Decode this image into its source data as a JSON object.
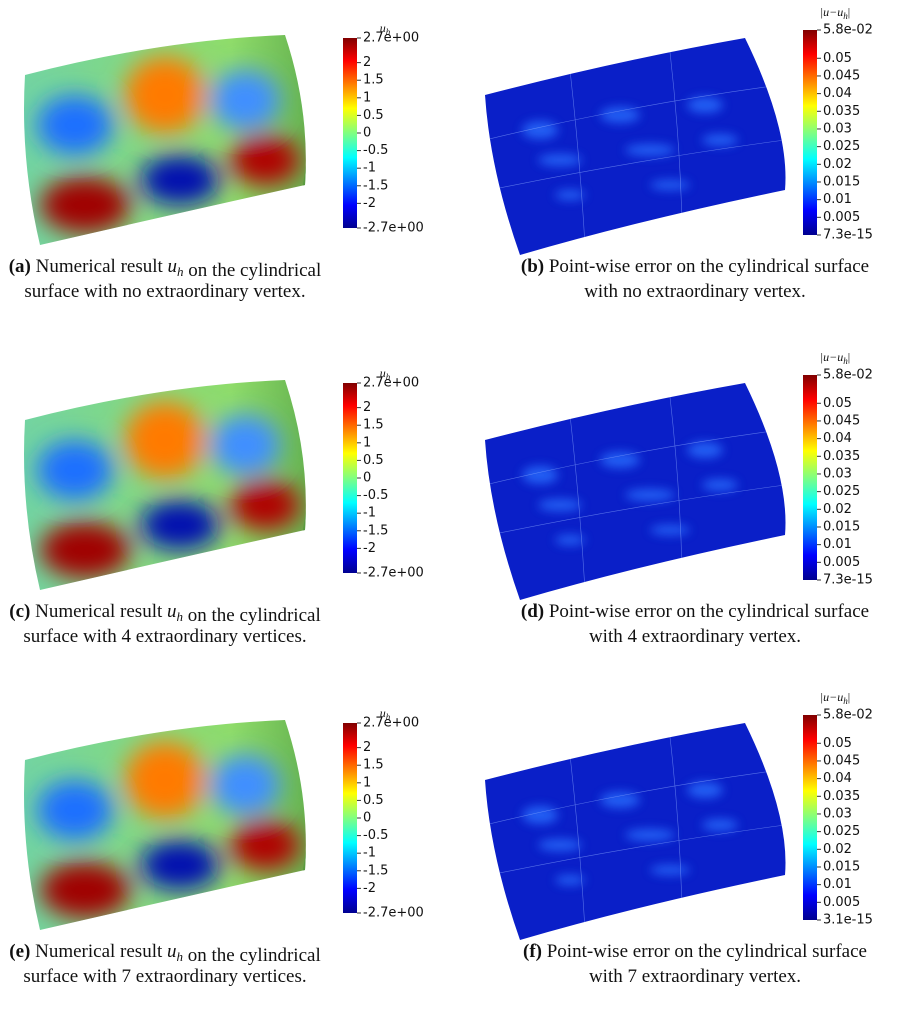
{
  "panels": [
    {
      "colorbar": {
        "title": {
          "main": "u",
          "sub": "h",
          "tail": ""
        },
        "ticks": [
          "2.7e+00",
          "2",
          "1.5",
          "1",
          "0.5",
          "0",
          "-0.5",
          "-1",
          "-1.5",
          "-2",
          "-2.7e+00"
        ]
      },
      "caption": {
        "label": "(a)",
        "line1": [
          {
            "text": " Numerical result "
          },
          {
            "math": "u",
            "sub": "h"
          },
          {
            "text": " on the cylindrical"
          }
        ],
        "line2": "surface with no extraordinary vertex."
      }
    },
    {
      "colorbar": {
        "title": {
          "main": "|u−u",
          "sub": "h",
          "tail": "|"
        },
        "ticks": [
          "5.8e-02",
          "0.05",
          "0.045",
          "0.04",
          "0.035",
          "0.03",
          "0.025",
          "0.02",
          "0.015",
          "0.01",
          "0.005",
          "7.3e-15"
        ]
      },
      "caption": {
        "label": "(b)",
        "line1": [
          {
            "text": " Point-wise error on the cylindrical surface"
          }
        ],
        "line2": "with no extraordinary vertex."
      }
    },
    {
      "colorbar": {
        "title": {
          "main": "u",
          "sub": "h",
          "tail": ""
        },
        "ticks": [
          "2.7e+00",
          "2",
          "1.5",
          "1",
          "0.5",
          "0",
          "-0.5",
          "-1",
          "-1.5",
          "-2",
          "-2.7e+00"
        ]
      },
      "caption": {
        "label": "(c)",
        "line1": [
          {
            "text": " Numerical result "
          },
          {
            "math": "u",
            "sub": "h"
          },
          {
            "text": " on the cylindrical"
          }
        ],
        "line2": "surface with 4 extraordinary vertices."
      }
    },
    {
      "colorbar": {
        "title": {
          "main": "|u−u",
          "sub": "h",
          "tail": "|"
        },
        "ticks": [
          "5.8e-02",
          "0.05",
          "0.045",
          "0.04",
          "0.035",
          "0.03",
          "0.025",
          "0.02",
          "0.015",
          "0.01",
          "0.005",
          "7.3e-15"
        ]
      },
      "caption": {
        "label": "(d)",
        "line1": [
          {
            "text": " Point-wise error on the cylindrical surface"
          }
        ],
        "line2": "with 4 extraordinary vertex."
      }
    },
    {
      "colorbar": {
        "title": {
          "main": "u",
          "sub": "h",
          "tail": ""
        },
        "ticks": [
          "2.7e+00",
          "2",
          "1.5",
          "1",
          "0.5",
          "0",
          "-0.5",
          "-1",
          "-1.5",
          "-2",
          "-2.7e+00"
        ]
      },
      "caption": {
        "label": "(e)",
        "line1": [
          {
            "text": " Numerical result "
          },
          {
            "math": "u",
            "sub": "h"
          },
          {
            "text": " on the cylindrical"
          }
        ],
        "line2": "surface with 7 extraordinary vertices."
      }
    },
    {
      "colorbar": {
        "title": {
          "main": "|u−u",
          "sub": "h",
          "tail": "|"
        },
        "ticks": [
          "5.8e-02",
          "0.05",
          "0.045",
          "0.04",
          "0.035",
          "0.03",
          "0.025",
          "0.02",
          "0.015",
          "0.01",
          "0.005",
          "3.1e-15"
        ]
      },
      "caption": {
        "label": "(f)",
        "line1": [
          {
            "text": " Point-wise error on the cylindrical surface"
          }
        ],
        "line2": "with 7 extraordinary vertex."
      }
    }
  ]
}
